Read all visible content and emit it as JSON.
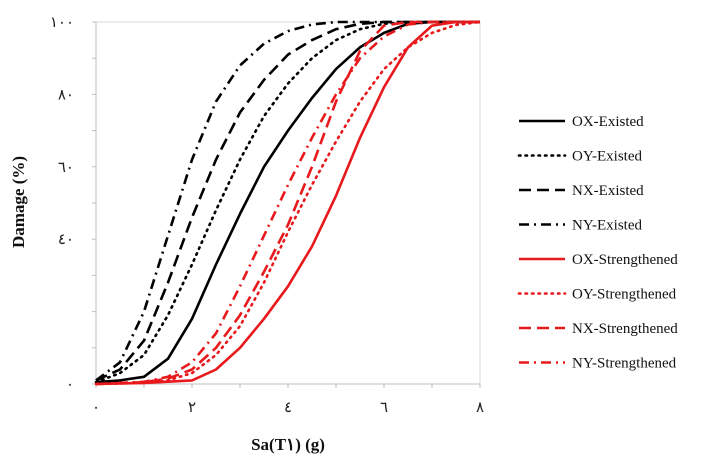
{
  "chart_data": {
    "type": "line",
    "xlabel": "Sa(T١) (g)",
    "ylabel": "Damage (%)",
    "xlim": [
      0,
      8
    ],
    "ylim": [
      0,
      100
    ],
    "x_ticks": [
      0,
      2,
      4,
      6,
      8
    ],
    "y_ticks": [
      0,
      40,
      60,
      80,
      100
    ],
    "x_tick_labels": [
      "٠",
      "٢",
      "٤",
      "٦",
      "٨"
    ],
    "y_tick_labels": [
      "٠",
      "٤٠",
      "٦٠",
      "٨٠",
      "١٠٠"
    ],
    "grid": false,
    "legend_position": "right",
    "series": [
      {
        "name": "OX-Existed",
        "color": "#000000",
        "dash": "solid",
        "points": [
          [
            0,
            0.5
          ],
          [
            0.5,
            1
          ],
          [
            1,
            2
          ],
          [
            1.5,
            7
          ],
          [
            2,
            18
          ],
          [
            2.5,
            33
          ],
          [
            3,
            47
          ],
          [
            3.5,
            60
          ],
          [
            4,
            70
          ],
          [
            4.5,
            79
          ],
          [
            5,
            87
          ],
          [
            5.5,
            93
          ],
          [
            6,
            97
          ],
          [
            6.5,
            99.5
          ],
          [
            7,
            100
          ],
          [
            8,
            100
          ]
        ]
      },
      {
        "name": "OY-Existed",
        "color": "#000000",
        "dash": "dot",
        "points": [
          [
            0,
            0.5
          ],
          [
            0.5,
            3
          ],
          [
            1,
            8
          ],
          [
            1.5,
            19
          ],
          [
            2,
            33
          ],
          [
            2.5,
            48
          ],
          [
            3,
            62
          ],
          [
            3.5,
            74
          ],
          [
            4,
            83
          ],
          [
            4.5,
            90
          ],
          [
            5,
            95
          ],
          [
            5.5,
            98
          ],
          [
            6,
            99.5
          ],
          [
            6.5,
            100
          ],
          [
            8,
            100
          ]
        ]
      },
      {
        "name": "NX-Existed",
        "color": "#000000",
        "dash": "dash",
        "points": [
          [
            0,
            1
          ],
          [
            0.5,
            4
          ],
          [
            1,
            12
          ],
          [
            1.5,
            28
          ],
          [
            2,
            46
          ],
          [
            2.5,
            62
          ],
          [
            3,
            75
          ],
          [
            3.5,
            84
          ],
          [
            4,
            91
          ],
          [
            4.5,
            95
          ],
          [
            5,
            98
          ],
          [
            5.5,
            99.5
          ],
          [
            6,
            100
          ],
          [
            8,
            100
          ]
        ]
      },
      {
        "name": "NY-Existed",
        "color": "#000000",
        "dash": "dashdot",
        "points": [
          [
            0,
            1
          ],
          [
            0.5,
            6
          ],
          [
            1,
            20
          ],
          [
            1.5,
            41
          ],
          [
            2,
            62
          ],
          [
            2.5,
            78
          ],
          [
            3,
            88
          ],
          [
            3.5,
            94
          ],
          [
            4,
            97.5
          ],
          [
            4.5,
            99.3
          ],
          [
            5,
            100
          ],
          [
            8,
            100
          ]
        ]
      },
      {
        "name": "OX-Strengthened",
        "color": "#e8191c",
        "dash": "solid",
        "points": [
          [
            0,
            0
          ],
          [
            1,
            0.3
          ],
          [
            2,
            1
          ],
          [
            2.5,
            4
          ],
          [
            3,
            10
          ],
          [
            3.5,
            18
          ],
          [
            4,
            27
          ],
          [
            4.5,
            38
          ],
          [
            5,
            52
          ],
          [
            5.5,
            68
          ],
          [
            6,
            82
          ],
          [
            6.5,
            93
          ],
          [
            7,
            99
          ],
          [
            7.5,
            100
          ],
          [
            8,
            100
          ]
        ]
      },
      {
        "name": "OY-Strengthened",
        "color": "#e8191c",
        "dash": "dot",
        "points": [
          [
            0,
            0
          ],
          [
            1,
            0.3
          ],
          [
            1.5,
            1
          ],
          [
            2,
            3
          ],
          [
            2.5,
            8
          ],
          [
            3,
            16
          ],
          [
            3.5,
            28
          ],
          [
            4,
            42
          ],
          [
            4.5,
            55
          ],
          [
            5,
            67
          ],
          [
            5.5,
            78
          ],
          [
            6,
            87
          ],
          [
            6.5,
            93
          ],
          [
            7,
            97
          ],
          [
            7.5,
            99.2
          ],
          [
            8,
            100
          ]
        ]
      },
      {
        "name": "NX-Strengthened",
        "color": "#e8191c",
        "dash": "dash",
        "points": [
          [
            0,
            0
          ],
          [
            1,
            0.5
          ],
          [
            1.5,
            1.5
          ],
          [
            2,
            4
          ],
          [
            2.5,
            10
          ],
          [
            3,
            19
          ],
          [
            3.5,
            31
          ],
          [
            4,
            44
          ],
          [
            4.5,
            60
          ],
          [
            5,
            78
          ],
          [
            5.5,
            92
          ],
          [
            6,
            99
          ],
          [
            6.5,
            100
          ],
          [
            8,
            100
          ]
        ]
      },
      {
        "name": "NY-Strengthened",
        "color": "#e8191c",
        "dash": "dashdot",
        "points": [
          [
            0,
            0
          ],
          [
            1,
            0.6
          ],
          [
            1.5,
            2
          ],
          [
            2,
            6
          ],
          [
            2.5,
            14
          ],
          [
            3,
            27
          ],
          [
            3.5,
            41
          ],
          [
            4,
            55
          ],
          [
            4.5,
            68
          ],
          [
            5,
            80
          ],
          [
            5.5,
            90
          ],
          [
            6,
            96
          ],
          [
            6.5,
            99.3
          ],
          [
            7,
            100
          ],
          [
            8,
            100
          ]
        ]
      }
    ]
  }
}
